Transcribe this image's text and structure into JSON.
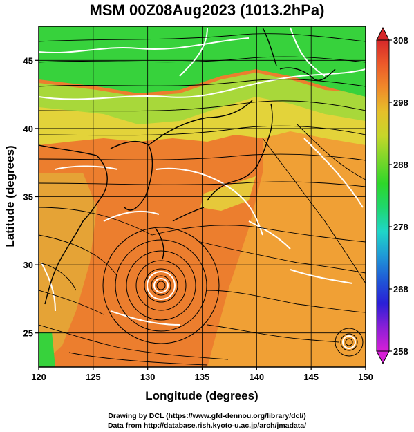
{
  "title": "MSM 00Z08Aug2023 (1013.2hPa)",
  "axes": {
    "xlabel": "Longitude (degrees)",
    "ylabel": "Latitude  (degrees)",
    "xlim": [
      120,
      150
    ],
    "ylim": [
      22.5,
      47.5
    ],
    "xticks": [
      {
        "v": 120,
        "label": "120"
      },
      {
        "v": 125,
        "label": "125"
      },
      {
        "v": 130,
        "label": "130"
      },
      {
        "v": 135,
        "label": "135"
      },
      {
        "v": 140,
        "label": "140"
      },
      {
        "v": 145,
        "label": "145"
      },
      {
        "v": 150,
        "label": "150"
      }
    ],
    "yticks": [
      {
        "v": 25,
        "label": "25"
      },
      {
        "v": 30,
        "label": "30"
      },
      {
        "v": 35,
        "label": "35"
      },
      {
        "v": 40,
        "label": "40"
      },
      {
        "v": 45,
        "label": "45"
      }
    ],
    "grid": true
  },
  "colorbar": {
    "min": 258,
    "max": 308,
    "ticks": [
      {
        "v": 258,
        "label": "258"
      },
      {
        "v": 268,
        "label": "268"
      },
      {
        "v": 278,
        "label": "278"
      },
      {
        "v": 288,
        "label": "288"
      },
      {
        "v": 298,
        "label": "298"
      },
      {
        "v": 308,
        "label": "308"
      }
    ],
    "stops": [
      "#d61fd6",
      "#8a1fd6",
      "#2a1fd6",
      "#1f5ad6",
      "#1f9ad6",
      "#1fd6c8",
      "#1fd66e",
      "#2ed62a",
      "#7ad62a",
      "#c6d62a",
      "#e6c02a",
      "#f08a2a",
      "#ec5a2a",
      "#d6282a"
    ]
  },
  "map": {
    "colors": {
      "green": "#37d23c",
      "yellow_green": "#a8d83a",
      "yellow": "#e3d33a",
      "orange": "#f0a035",
      "deep_orange": "#ec7e2e",
      "contour": "#ffffff",
      "streamline": "#000000",
      "coast": "#000000"
    },
    "features": [
      "potential-temperature-shading",
      "wind-streamlines",
      "white-contours",
      "coastlines",
      "typhoon-vortex"
    ]
  },
  "footer": {
    "line1": "Drawing by DCL (https://www.gfd-dennou.org/library/dcl/)",
    "line2": "Data from http://database.rish.kyoto-u.ac.jp/arch/jmadata/"
  }
}
